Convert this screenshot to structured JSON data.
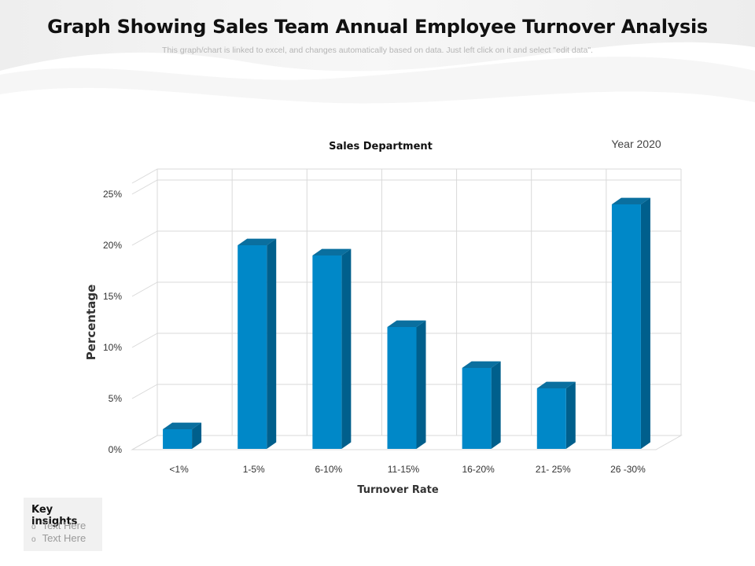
{
  "header": {
    "title": "Graph Showing Sales Team Annual Employee Turnover Analysis",
    "subtitle": "This graph/chart is linked to excel, and changes automatically based on data. Just left click on it and select \"edit data\"."
  },
  "chart_data": {
    "type": "bar",
    "title": "Sales Department",
    "annotation": "Year 2020",
    "xlabel": "Turnover Rate",
    "ylabel": "Percentage",
    "categories": [
      "<1%",
      "1-5%",
      "6-10%",
      "11-15%",
      "16-20%",
      "21- 25%",
      "26 -30%"
    ],
    "values": [
      2,
      20,
      19,
      12,
      8,
      6,
      24
    ],
    "ylim": [
      0,
      25
    ],
    "yticks": [
      "0%",
      "5%",
      "10%",
      "15%",
      "20%",
      "25%"
    ],
    "grid": true,
    "style": "3d-column",
    "colors": {
      "front": "#0088c8",
      "side": "#005f8c",
      "top": "#0a6f9f"
    }
  },
  "key_insights": {
    "title": "Key insights",
    "items": [
      "Text Here",
      "Text Here"
    ]
  }
}
